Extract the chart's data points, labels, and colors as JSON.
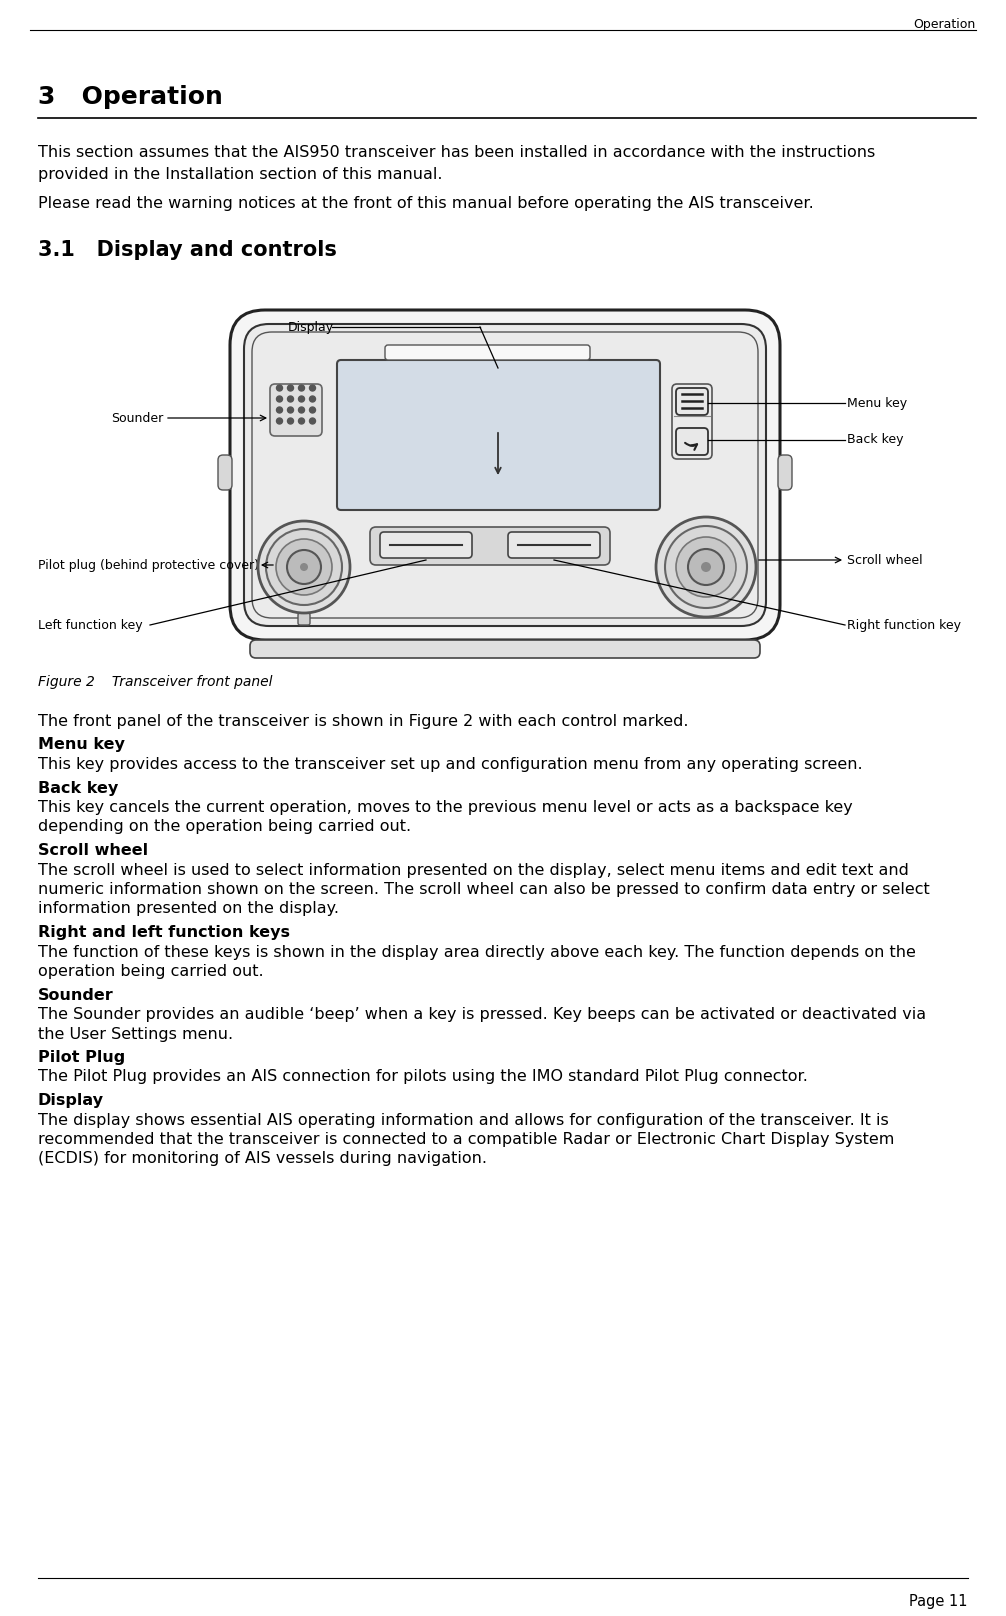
{
  "page_header": "Operation",
  "section_title": "3   Operation",
  "para1_line1": "This section assumes that the AIS950 transceiver has been installed in accordance with the instructions",
  "para1_line2": "provided in the Installation section of this manual.",
  "para2": "Please read the warning notices at the front of this manual before operating the AIS transceiver.",
  "subsection_title": "3.1   Display and controls",
  "figure_caption_bold": "Figure 2",
  "figure_caption_italic": "     Transceiver front panel",
  "body_texts": [
    {
      "bold": false,
      "text": "The front panel of the transceiver is shown in Figure 2 with each control marked."
    },
    {
      "bold": true,
      "text": "Menu key"
    },
    {
      "bold": false,
      "text": "This key provides access to the transceiver set up and configuration menu from any operating screen."
    },
    {
      "bold": true,
      "text": "Back key"
    },
    {
      "bold": false,
      "text": "This key cancels the current operation, moves to the previous menu level or acts as a backspace key"
    },
    {
      "bold": false,
      "text": "depending on the operation being carried out."
    },
    {
      "bold": true,
      "text": "Scroll wheel"
    },
    {
      "bold": false,
      "text": "The scroll wheel is used to select information presented on the display, select menu items and edit text and"
    },
    {
      "bold": false,
      "text": "numeric information shown on the screen. The scroll wheel can also be pressed to confirm data entry or select"
    },
    {
      "bold": false,
      "text": "information presented on the display."
    },
    {
      "bold": true,
      "text": "Right and left function keys"
    },
    {
      "bold": false,
      "text": "The function of these keys is shown in the display area directly above each key. The function depends on the"
    },
    {
      "bold": false,
      "text": "operation being carried out."
    },
    {
      "bold": true,
      "text": "Sounder"
    },
    {
      "bold": false,
      "text": "The Sounder provides an audible ‘beep’ when a key is pressed. Key beeps can be activated or deactivated via"
    },
    {
      "bold": false,
      "text": "the User Settings menu."
    },
    {
      "bold": true,
      "text": "Pilot Plug"
    },
    {
      "bold": false,
      "text": "The Pilot Plug provides an AIS connection for pilots using the IMO standard Pilot Plug connector."
    },
    {
      "bold": true,
      "text": "Display"
    },
    {
      "bold": false,
      "text": "The display shows essential AIS operating information and allows for configuration of the transceiver. It is"
    },
    {
      "bold": false,
      "text": "recommended that the transceiver is connected to a compatible Radar or Electronic Chart Display System"
    },
    {
      "bold": false,
      "text": "(ECDIS) for monitoring of AIS vessels during navigation."
    }
  ],
  "page_footer": "Page 11",
  "bg_color": "#ffffff",
  "text_color": "#000000"
}
